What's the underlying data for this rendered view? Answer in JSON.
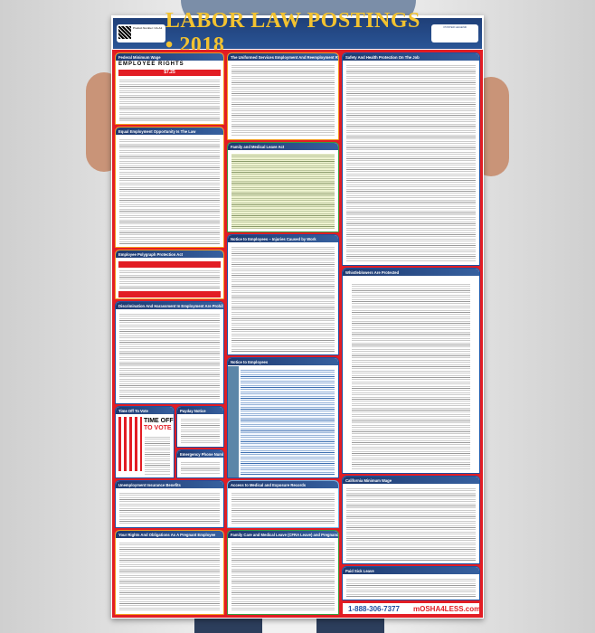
{
  "poster": {
    "title": "LABOR LAW POSTINGS • 2018",
    "product_label": "Product Number: CA-A1",
    "legend_label": "POSTER LEGEND",
    "colors": {
      "banner": "#1f3f78",
      "title": "#f2c230",
      "frame": "#e21d24"
    },
    "sections": {
      "fmw": "Federal Minimum Wage",
      "eeo": "Equal Employment Opportunity Is The Law",
      "poly": "Employee Polygraph Protection Act",
      "disc": "Discrimination And Harassment In Employment Are Prohibited By Law",
      "vote": "Time Off To Vote",
      "payday": "Payday Notice",
      "emerg": "Emergency Phone Numbers",
      "ui": "Unemployment Insurance Benefits",
      "preg": "Your Rights And Obligations As A Pregnant Employee",
      "userra": "The Uniformed Services Employment And Reemployment Rights Act",
      "fmla": "Family and Medical Leave Act",
      "inj": "Notice to Employees – Injuries Caused by Work",
      "notice": "Notice to Employees",
      "access": "Access to Medical and Exposure Records",
      "cfra": "Family Care and Medical Leave (CFRA Leave) and Pregnancy Disability Leave",
      "safety": "Safety And Health Protection On The Job",
      "whistle": "Whistleblowers Are Protected",
      "camw": "California Minimum Wage",
      "sick": "Paid Sick Leave"
    },
    "vote_line1": "TIME OFF",
    "vote_line2": "TO VOTE",
    "fmw_banner": "EMPLOYEE RIGHTS",
    "fmw_wage": "$7.25",
    "phone": "1-888-306-7377",
    "brand": "mOSHA4LESS.com"
  }
}
